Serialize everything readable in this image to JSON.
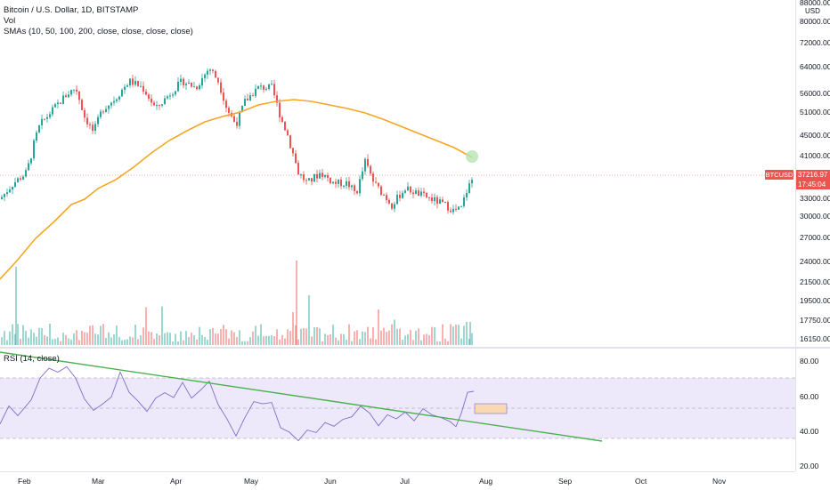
{
  "legend": {
    "title": "Bitcoin / U.S. Dollar, 1D, BITSTAMP",
    "volume": "Vol",
    "sma": "SMAs (10, 50, 100, 200, close, close, close, close)",
    "rsi": "RSI (14, close)"
  },
  "price_axis": {
    "currency": "USD",
    "ticks": [
      "88000.00",
      "80000.00",
      "72000.00",
      "64000.00",
      "56000.00",
      "51000.00",
      "45000.00",
      "41000.00",
      "33000.00",
      "30000.00",
      "27000.00",
      "24000.00",
      "21500.00",
      "19500.00",
      "17750.00",
      "16150.00"
    ]
  },
  "last_price": {
    "symbol": "BTCUSD",
    "price": "37216.97",
    "countdown": "17:45:04"
  },
  "rsi_axis": {
    "ticks": [
      "80.00",
      "60.00",
      "40.00",
      "20.00"
    ]
  },
  "time_axis": {
    "labels": [
      "Feb",
      "Mar",
      "Apr",
      "May",
      "Jun",
      "Jul",
      "Aug",
      "Sep",
      "Oct",
      "Nov"
    ]
  },
  "colors": {
    "up": "#26a69a",
    "down": "#ef5350",
    "sma": "#f5a623",
    "rsi_line": "#7e6fc7",
    "rsi_band": "#ede9fb",
    "trendline": "#4caf50",
    "box_fill": "#f8d9b4"
  }
}
